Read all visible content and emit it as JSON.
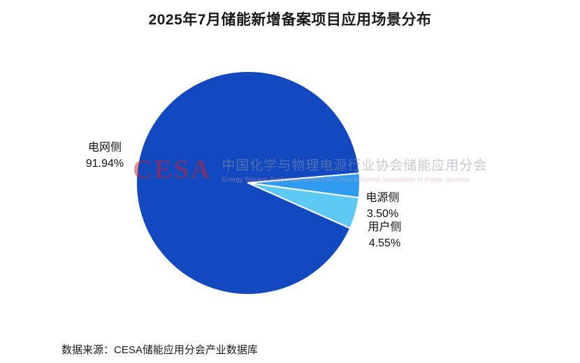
{
  "title": "2025年7月储能新增备案项目应用场景分布",
  "source": "数据来源：CESA储能应用分会产业数据库",
  "watermark": {
    "logo": "CESA",
    "line1": "中国化学与物理电源行业协会储能应用分会",
    "line2": "Energy Storage Application Branch of China Industrial Association of Power Sources"
  },
  "chart_data": {
    "type": "pie",
    "title": "2025年7月储能新增备案项目应用场景分布",
    "unit": "%",
    "legend": "none",
    "start_angle_deg": 24,
    "slices": [
      {
        "id": "grid-side",
        "label": "电网侧",
        "value": 91.94,
        "display": "91.94%",
        "color": "#1249c0"
      },
      {
        "id": "power-side",
        "label": "电源侧",
        "value": 3.5,
        "display": "3.50%",
        "color": "#2e9bf0"
      },
      {
        "id": "user-side",
        "label": "用户侧",
        "value": 4.55,
        "display": "4.55%",
        "color": "#5ec9f2"
      }
    ]
  }
}
